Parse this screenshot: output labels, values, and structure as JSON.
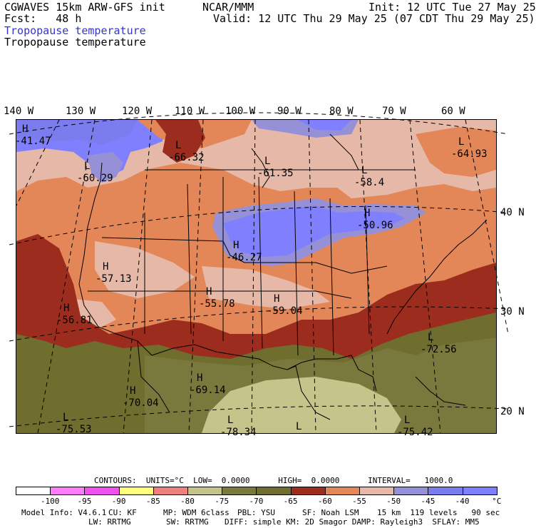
{
  "header": {
    "model_line": "CGWAVES 15km ARW-GFS init",
    "center": "NCAR/MMM",
    "init": "Init: 12 UTC Tue 27 May 25",
    "fcst": "Fcst:   48 h",
    "valid": "Valid: 12 UTC Thu 29 May 25 (07 CDT Thu 29 May 25)",
    "field_title_blue": "Tropopause temperature",
    "field_title_black": "Tropopause temperature"
  },
  "lon_labels": [
    "140 W",
    "130 W",
    "120 W",
    "110 W",
    "100 W",
    "90 W",
    "80 W",
    "70 W",
    "60 W"
  ],
  "lat_labels": [
    "40 N",
    "30 N",
    "20 N"
  ],
  "systems": [
    {
      "type": "H",
      "value": "-41.47"
    },
    {
      "type": "L",
      "value": "-60.29"
    },
    {
      "type": "L",
      "value": "-66.32"
    },
    {
      "type": "L",
      "value": "-61.35"
    },
    {
      "type": "L",
      "value": "-58.4"
    },
    {
      "type": "L",
      "value": "-64.93"
    },
    {
      "type": "H",
      "value": "-50.96"
    },
    {
      "type": "H",
      "value": "-46.27"
    },
    {
      "type": "H",
      "value": "-57.13"
    },
    {
      "type": "H",
      "value": "-55.78"
    },
    {
      "type": "H",
      "value": "-59.04"
    },
    {
      "type": "H",
      "value": "-56.81"
    },
    {
      "type": "L",
      "value": "-72.56"
    },
    {
      "type": "H",
      "value": "-69.14"
    },
    {
      "type": "H",
      "value": "-70.04"
    },
    {
      "type": "L",
      "value": "-75.53"
    },
    {
      "type": "L",
      "value": "-78.34"
    },
    {
      "type": "L",
      "value": ""
    },
    {
      "type": "L",
      "value": "-75.42"
    }
  ],
  "contours_line": "CONTOURS:  UNITS=°C  LOW=  0.0000      HIGH=  0.0000      INTERVAL=   1000.0",
  "colorbar": {
    "colors": [
      "#ffffff",
      "#ff7cff",
      "#ef50ef",
      "#ffff7c",
      "#f08080",
      "#c5c48a",
      "#79793e",
      "#6f6e2e",
      "#9c2c1e",
      "#e38759",
      "#e6b8a8",
      "#9691d6",
      "#7b7ced",
      "#8080ff"
    ],
    "labels": [
      "-100",
      "-95",
      "-90",
      "-85",
      "-80",
      "-75",
      "-70",
      "-65",
      "-60",
      "-55",
      "-50",
      "-45",
      "-40",
      "°C"
    ]
  },
  "footer": {
    "line1_a": "Model Info: V4.6.1",
    "line1_b": "CU: KF",
    "line1_c": "MP: WDM 6class",
    "line1_d": "PBL: YSU",
    "line1_e": "SF: Noah LSM",
    "line1_f": "15 km  119 levels   90 sec",
    "line2_a": "LW: RRTMG",
    "line2_b": "SW: RRTMG",
    "line2_c": "DIFF: simple KM: 2D Smagor DAMP: Rayleigh3  SFLAY: MM5"
  },
  "palette": {
    "cold_dark_olive": "#6f6e2e",
    "olive": "#79793e",
    "khaki": "#c5c48a",
    "dark_red": "#9c2c1e",
    "orange": "#e38759",
    "pink": "#e6b8a8",
    "lavender": "#9691d6",
    "blue": "#8080ff"
  }
}
